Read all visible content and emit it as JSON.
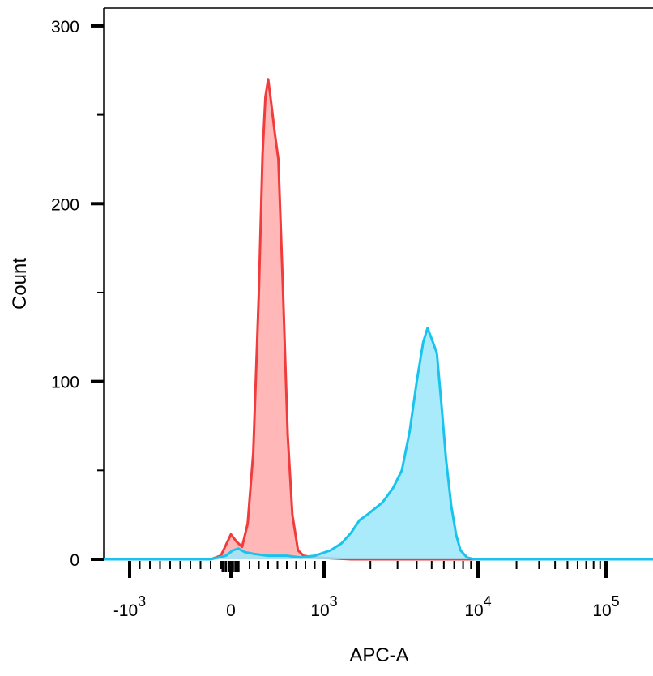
{
  "chart_data": {
    "type": "area",
    "xlabel": "APC-A",
    "ylabel": "Count",
    "x_scale": "biexponential",
    "xlim": [
      -1800,
      150000
    ],
    "ylim": [
      0,
      310
    ],
    "grid": false,
    "legend": "none",
    "y_ticks": [
      {
        "value": 0,
        "label": "0"
      },
      {
        "value": 100,
        "label": "100"
      },
      {
        "value": 200,
        "label": "200"
      },
      {
        "value": 300,
        "label": "300"
      }
    ],
    "x_ticks": [
      {
        "value": -1000,
        "base": "-10",
        "exp": "3"
      },
      {
        "value": 0,
        "base": "0",
        "exp": ""
      },
      {
        "value": 1000,
        "base": "10",
        "exp": "3"
      },
      {
        "value": 10000,
        "base": "10",
        "exp": "4"
      },
      {
        "value": 100000,
        "base": "10",
        "exp": "5"
      }
    ],
    "series": [
      {
        "color": "#f03c3c",
        "fill": "#ffaaaa",
        "points": [
          [
            -1800,
            0
          ],
          [
            -200,
            0
          ],
          [
            -100,
            2
          ],
          [
            -50,
            8
          ],
          [
            0,
            14
          ],
          [
            60,
            10
          ],
          [
            120,
            7
          ],
          [
            180,
            20
          ],
          [
            240,
            60
          ],
          [
            300,
            150
          ],
          [
            340,
            228
          ],
          [
            370,
            260
          ],
          [
            400,
            270
          ],
          [
            430,
            258
          ],
          [
            470,
            240
          ],
          [
            510,
            225
          ],
          [
            560,
            150
          ],
          [
            610,
            70
          ],
          [
            660,
            25
          ],
          [
            720,
            5
          ],
          [
            780,
            2
          ],
          [
            900,
            1
          ],
          [
            1500,
            0
          ],
          [
            10000,
            0
          ],
          [
            150000,
            0
          ]
        ]
      },
      {
        "color": "#19c3ee",
        "fill": "#9be8fa",
        "points": [
          [
            -1800,
            0
          ],
          [
            -200,
            0
          ],
          [
            -50,
            2
          ],
          [
            20,
            5
          ],
          [
            80,
            6
          ],
          [
            150,
            4
          ],
          [
            250,
            3
          ],
          [
            400,
            2
          ],
          [
            600,
            2
          ],
          [
            750,
            1
          ],
          [
            900,
            2
          ],
          [
            1100,
            5
          ],
          [
            1300,
            9
          ],
          [
            1500,
            15
          ],
          [
            1700,
            22
          ],
          [
            1900,
            25
          ],
          [
            2100,
            28
          ],
          [
            2400,
            32
          ],
          [
            2800,
            40
          ],
          [
            3200,
            50
          ],
          [
            3600,
            72
          ],
          [
            4000,
            100
          ],
          [
            4400,
            122
          ],
          [
            4700,
            130
          ],
          [
            5000,
            124
          ],
          [
            5400,
            116
          ],
          [
            5800,
            86
          ],
          [
            6200,
            56
          ],
          [
            6700,
            30
          ],
          [
            7200,
            14
          ],
          [
            7700,
            5
          ],
          [
            8500,
            1
          ],
          [
            9500,
            0
          ],
          [
            150000,
            0
          ]
        ]
      }
    ]
  }
}
